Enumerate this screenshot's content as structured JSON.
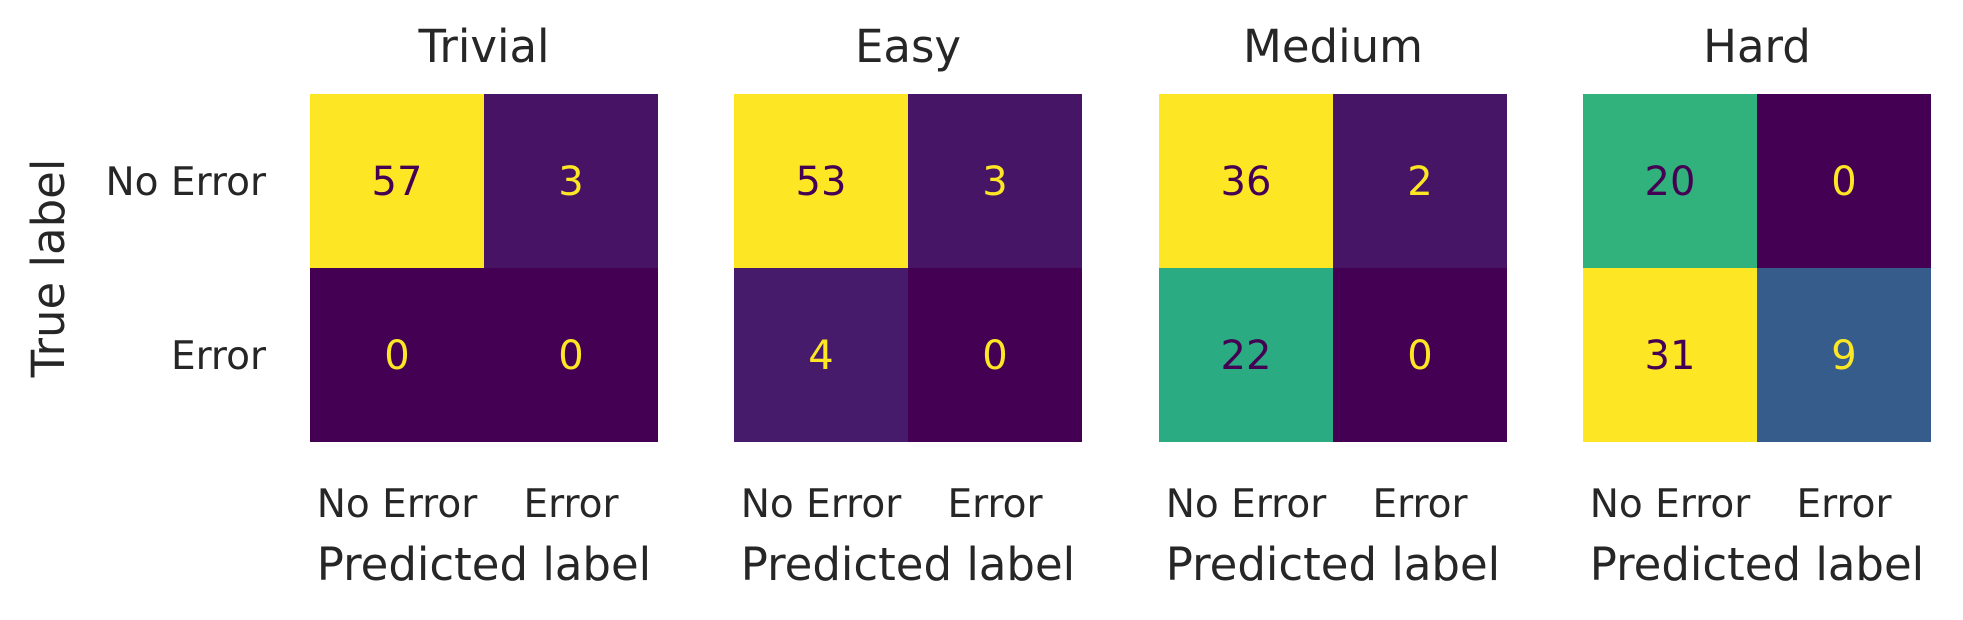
{
  "chart_data": [
    {
      "type": "heatmap",
      "title": "Trivial",
      "xlabel": "Predicted label",
      "ylabel": "True label",
      "x_categories": [
        "No Error",
        "Error"
      ],
      "y_categories": [
        "No Error",
        "Error"
      ],
      "values": [
        [
          57,
          3
        ],
        [
          0,
          0
        ]
      ],
      "colormap": "viridis",
      "grid": false
    },
    {
      "type": "heatmap",
      "title": "Easy",
      "xlabel": "Predicted label",
      "ylabel": "",
      "x_categories": [
        "No Error",
        "Error"
      ],
      "y_categories": [
        "No Error",
        "Error"
      ],
      "values": [
        [
          53,
          3
        ],
        [
          4,
          0
        ]
      ],
      "colormap": "viridis",
      "grid": false
    },
    {
      "type": "heatmap",
      "title": "Medium",
      "xlabel": "Predicted label",
      "ylabel": "",
      "x_categories": [
        "No Error",
        "Error"
      ],
      "y_categories": [
        "No Error",
        "Error"
      ],
      "values": [
        [
          36,
          2
        ],
        [
          22,
          0
        ]
      ],
      "colormap": "viridis",
      "grid": false
    },
    {
      "type": "heatmap",
      "title": "Hard",
      "xlabel": "Predicted label",
      "ylabel": "",
      "x_categories": [
        "No Error",
        "Error"
      ],
      "y_categories": [
        "No Error",
        "Error"
      ],
      "values": [
        [
          20,
          0
        ],
        [
          31,
          9
        ]
      ],
      "colormap": "viridis",
      "grid": false
    }
  ],
  "colors": {
    "text": "#262626",
    "light_annotation": "#fde725",
    "dark_annotation": "#440154"
  }
}
